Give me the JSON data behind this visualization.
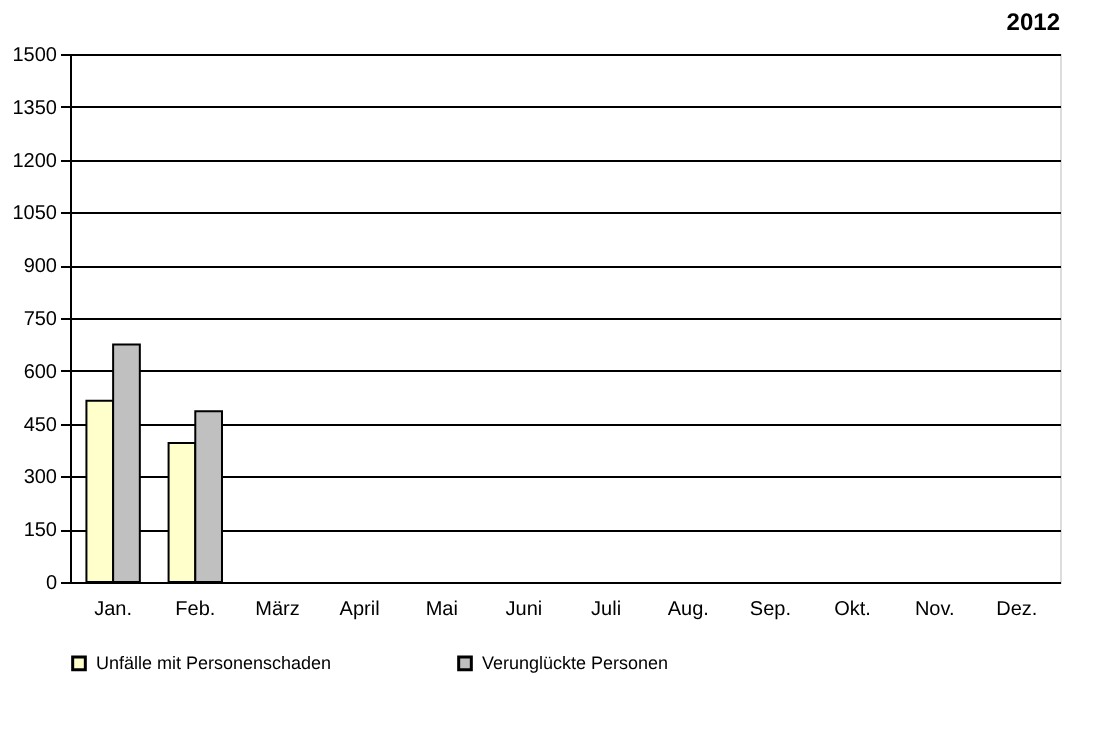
{
  "chart_data": {
    "type": "bar",
    "title": "2012",
    "categories": [
      "Jan.",
      "Feb.",
      "März",
      "April",
      "Mai",
      "Juni",
      "Juli",
      "Aug.",
      "Sep.",
      "Okt.",
      "Nov.",
      "Dez."
    ],
    "series": [
      {
        "name": "Unfälle mit Personenschaden",
        "color": "#ffffcc",
        "values": [
          515,
          395,
          null,
          null,
          null,
          null,
          null,
          null,
          null,
          null,
          null,
          null
        ]
      },
      {
        "name": "Verunglückte Personen",
        "color": "#c0c0c0",
        "values": [
          675,
          485,
          null,
          null,
          null,
          null,
          null,
          null,
          null,
          null,
          null,
          null
        ]
      }
    ],
    "ylim": [
      0,
      1500
    ],
    "yticks": [
      0,
      150,
      300,
      450,
      600,
      750,
      900,
      1050,
      1200,
      1350,
      1500
    ],
    "grid": "y",
    "legend": "bottom"
  }
}
